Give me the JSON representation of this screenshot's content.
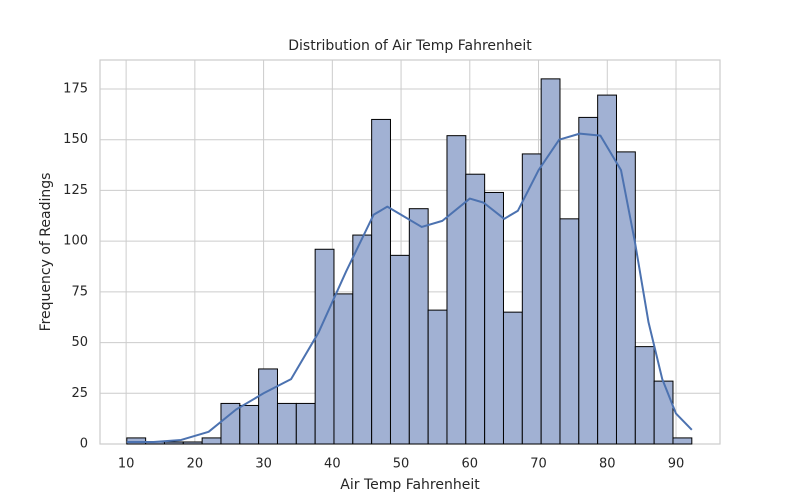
{
  "chart_data": {
    "type": "histogram",
    "title": "Distribution of Air Temp Fahrenheit",
    "x_label": "Air Temp Fahrenheit",
    "y_label": "Frequency of Readings",
    "bins": [
      10.1,
      12.84,
      15.58,
      18.32,
      21.06,
      23.8,
      26.54,
      29.28,
      32.02,
      34.76,
      37.5,
      40.24,
      42.98,
      45.72,
      48.46,
      51.2,
      53.94,
      56.68,
      59.42,
      62.16,
      64.9,
      67.64,
      70.38,
      73.12,
      75.86,
      78.6,
      81.34,
      84.08,
      86.82,
      89.56,
      92.3
    ],
    "values": [
      3,
      1,
      1,
      1,
      3,
      20,
      19,
      37,
      20,
      20,
      96,
      74,
      103,
      160,
      93,
      116,
      66,
      152,
      133,
      124,
      65,
      143,
      180,
      111,
      161,
      172,
      144,
      48,
      31,
      3
    ],
    "color": "#a1b1d3",
    "edge_color": "#000000",
    "kde": {
      "color": "#4c72b0",
      "x": [
        10.1,
        14,
        18,
        22,
        26,
        30,
        34,
        38,
        42,
        46,
        48,
        50,
        53,
        56,
        60,
        62,
        65,
        67,
        70,
        73,
        76,
        79,
        82,
        84,
        86,
        88,
        90,
        92.3
      ],
      "values": [
        1,
        1,
        2,
        6,
        17,
        25,
        32,
        55,
        85,
        113,
        117,
        113,
        107,
        110,
        121,
        119,
        111,
        115,
        135,
        150,
        153,
        152,
        135,
        100,
        60,
        32,
        15,
        7
      ]
    },
    "xlim": [
      6.2,
      96.4
    ],
    "ylim": [
      0,
      189.3
    ],
    "xticks": [
      10,
      20,
      30,
      40,
      50,
      60,
      70,
      80,
      90
    ],
    "yticks": [
      0,
      25,
      50,
      75,
      100,
      125,
      150,
      175
    ],
    "grid": true
  }
}
